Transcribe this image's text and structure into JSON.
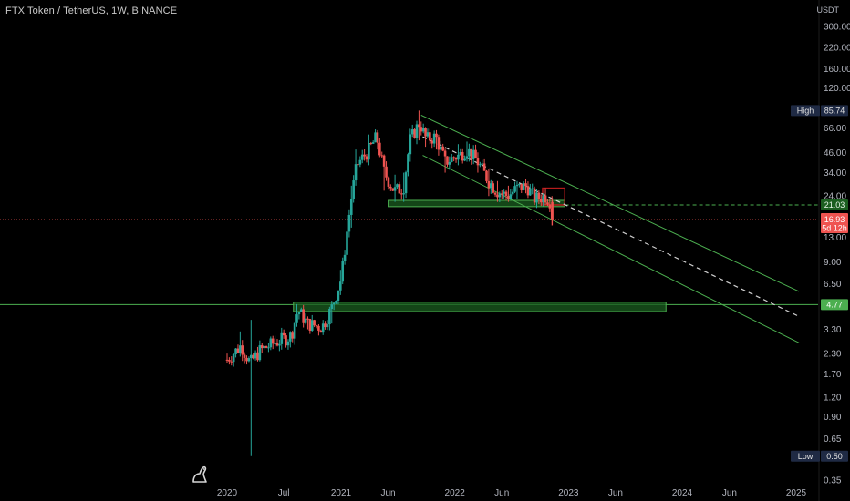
{
  "header": {
    "title": "FTX Token / TetherUS, 1W, BINANCE",
    "currency": "USDT"
  },
  "colors": {
    "background": "#000000",
    "up": "#26a69a",
    "down": "#ef5350",
    "channel": "#4caf50",
    "zone_fill": "#1b5e20",
    "zone_border": "#4caf50",
    "price_line": "#ef5350",
    "level_line": "#4caf50",
    "midline": "#d0d0d0",
    "resistance_box": "#b71c1c"
  },
  "badges": {
    "high_label": "High",
    "high_value": "85.74",
    "low_label": "Low",
    "low_value": "0.50",
    "level_value": "21.03",
    "support_value": "4.77",
    "last_price": "16.93",
    "countdown": "5d 12h"
  },
  "chart_data": {
    "type": "candlestick",
    "title": "FTX Token / TetherUS, 1W, BINANCE",
    "y_scale": "log",
    "y_ticks": [
      "300.00",
      "220.00",
      "160.00",
      "120.00",
      "66.00",
      "46.00",
      "34.00",
      "24.00",
      "13.00",
      "9.00",
      "6.50",
      "3.30",
      "2.30",
      "1.70",
      "1.20",
      "0.90",
      "0.65",
      "0.35"
    ],
    "x_ticks": [
      "2020",
      "Jul",
      "2021",
      "Jun",
      "2022",
      "Jun",
      "2023",
      "Jun",
      "2024",
      "Jun",
      "2025"
    ],
    "ylim": [
      0.32,
      420
    ],
    "high": 85.74,
    "low": 0.5,
    "last_price": 16.93,
    "levels": [
      21.03,
      4.77
    ],
    "anchors": [
      {
        "date": "2020-01-01",
        "price": 2.1,
        "wick_low": 2.0,
        "wick_high": 2.3
      },
      {
        "date": "2020-02-15",
        "price": 2.6,
        "wick_low": 2.2,
        "wick_high": 3.2
      },
      {
        "date": "2020-03-15",
        "price": 2.0,
        "wick_low": 0.5,
        "wick_high": 3.8
      },
      {
        "date": "2020-04-15",
        "price": 2.4,
        "wick_low": 2.1,
        "wick_high": 2.8
      },
      {
        "date": "2020-06-01",
        "price": 2.7,
        "wick_low": 2.5,
        "wick_high": 3.0
      },
      {
        "date": "2020-07-25",
        "price": 3.0,
        "wick_low": 2.8,
        "wick_high": 3.2
      },
      {
        "date": "2020-08-15",
        "price": 4.4,
        "wick_low": 3.6,
        "wick_high": 4.8
      },
      {
        "date": "2020-09-15",
        "price": 3.6,
        "wick_low": 3.3,
        "wick_high": 4.0
      },
      {
        "date": "2020-11-01",
        "price": 3.4,
        "wick_low": 3.2,
        "wick_high": 3.8
      },
      {
        "date": "2020-12-01",
        "price": 4.5,
        "wick_low": 3.6,
        "wick_high": 4.8
      },
      {
        "date": "2021-01-01",
        "price": 7.0,
        "wick_low": 5.5,
        "wick_high": 8.0
      },
      {
        "date": "2021-02-01",
        "price": 22.0,
        "wick_low": 15.0,
        "wick_high": 28.0
      },
      {
        "date": "2021-02-20",
        "price": 38.0,
        "wick_low": 28.0,
        "wick_high": 48.0
      },
      {
        "date": "2021-04-01",
        "price": 48.0,
        "wick_low": 38.0,
        "wick_high": 60.0
      },
      {
        "date": "2021-04-25",
        "price": 58.0,
        "wick_low": 48.0,
        "wick_high": 64.0
      },
      {
        "date": "2021-05-20",
        "price": 34.0,
        "wick_low": 26.0,
        "wick_high": 42.0
      },
      {
        "date": "2021-06-20",
        "price": 26.0,
        "wick_low": 22.0,
        "wick_high": 33.0
      },
      {
        "date": "2021-07-20",
        "price": 27.0,
        "wick_low": 22.0,
        "wick_high": 34.0
      },
      {
        "date": "2021-08-10",
        "price": 55.0,
        "wick_low": 40.0,
        "wick_high": 60.0
      },
      {
        "date": "2021-09-10",
        "price": 72.0,
        "wick_low": 55.0,
        "wick_high": 85.74
      },
      {
        "date": "2021-10-01",
        "price": 56.0,
        "wick_low": 50.0,
        "wick_high": 66.0
      },
      {
        "date": "2021-11-01",
        "price": 58.0,
        "wick_low": 48.0,
        "wick_high": 64.0
      },
      {
        "date": "2021-12-01",
        "price": 40.0,
        "wick_low": 34.0,
        "wick_high": 48.0
      },
      {
        "date": "2022-01-15",
        "price": 44.0,
        "wick_low": 38.0,
        "wick_high": 52.0
      },
      {
        "date": "2022-02-10",
        "price": 48.0,
        "wick_low": 42.0,
        "wick_high": 54.0
      },
      {
        "date": "2022-03-15",
        "price": 40.0,
        "wick_low": 34.0,
        "wick_high": 46.0
      },
      {
        "date": "2022-04-20",
        "price": 30.0,
        "wick_low": 24.0,
        "wick_high": 36.0
      },
      {
        "date": "2022-05-15",
        "price": 26.0,
        "wick_low": 22.0,
        "wick_high": 30.0
      },
      {
        "date": "2022-06-20",
        "price": 24.0,
        "wick_low": 22.0,
        "wick_high": 28.0
      },
      {
        "date": "2022-07-20",
        "price": 27.0,
        "wick_low": 23.0,
        "wick_high": 30.0
      },
      {
        "date": "2022-08-20",
        "price": 28.0,
        "wick_low": 25.0,
        "wick_high": 31.0
      },
      {
        "date": "2022-09-15",
        "price": 23.0,
        "wick_low": 21.0,
        "wick_high": 26.0
      },
      {
        "date": "2022-10-20",
        "price": 24.0,
        "wick_low": 21.0,
        "wick_high": 27.0
      },
      {
        "date": "2022-11-06",
        "price": 22.0,
        "wick_low": 20.0,
        "wick_high": 24.0
      },
      {
        "date": "2022-11-10",
        "price": 16.93,
        "wick_low": 15.5,
        "wick_high": 23.0
      }
    ],
    "annotations": {
      "channel_upper": [
        [
          "2021-09-15",
          80.0
        ],
        [
          "2025-01-10",
          5.8
        ]
      ],
      "channel_lower": [
        [
          "2021-09-20",
          44.0
        ],
        [
          "2025-01-10",
          2.7
        ]
      ],
      "midline": [
        [
          "2021-09-20",
          58.0
        ],
        [
          "2025-01-10",
          4.0
        ]
      ],
      "support_zone": {
        "from": "2021-06-01",
        "to": "2022-12-20",
        "low": 20.5,
        "high": 22.5
      },
      "lower_zone": {
        "from": "2020-08-01",
        "to": "2023-11-10",
        "low": 4.3,
        "high": 4.95
      },
      "resistance_box": {
        "from": "2022-10-10",
        "to": "2022-12-20",
        "low": 21.03,
        "high": 27.0
      }
    }
  }
}
